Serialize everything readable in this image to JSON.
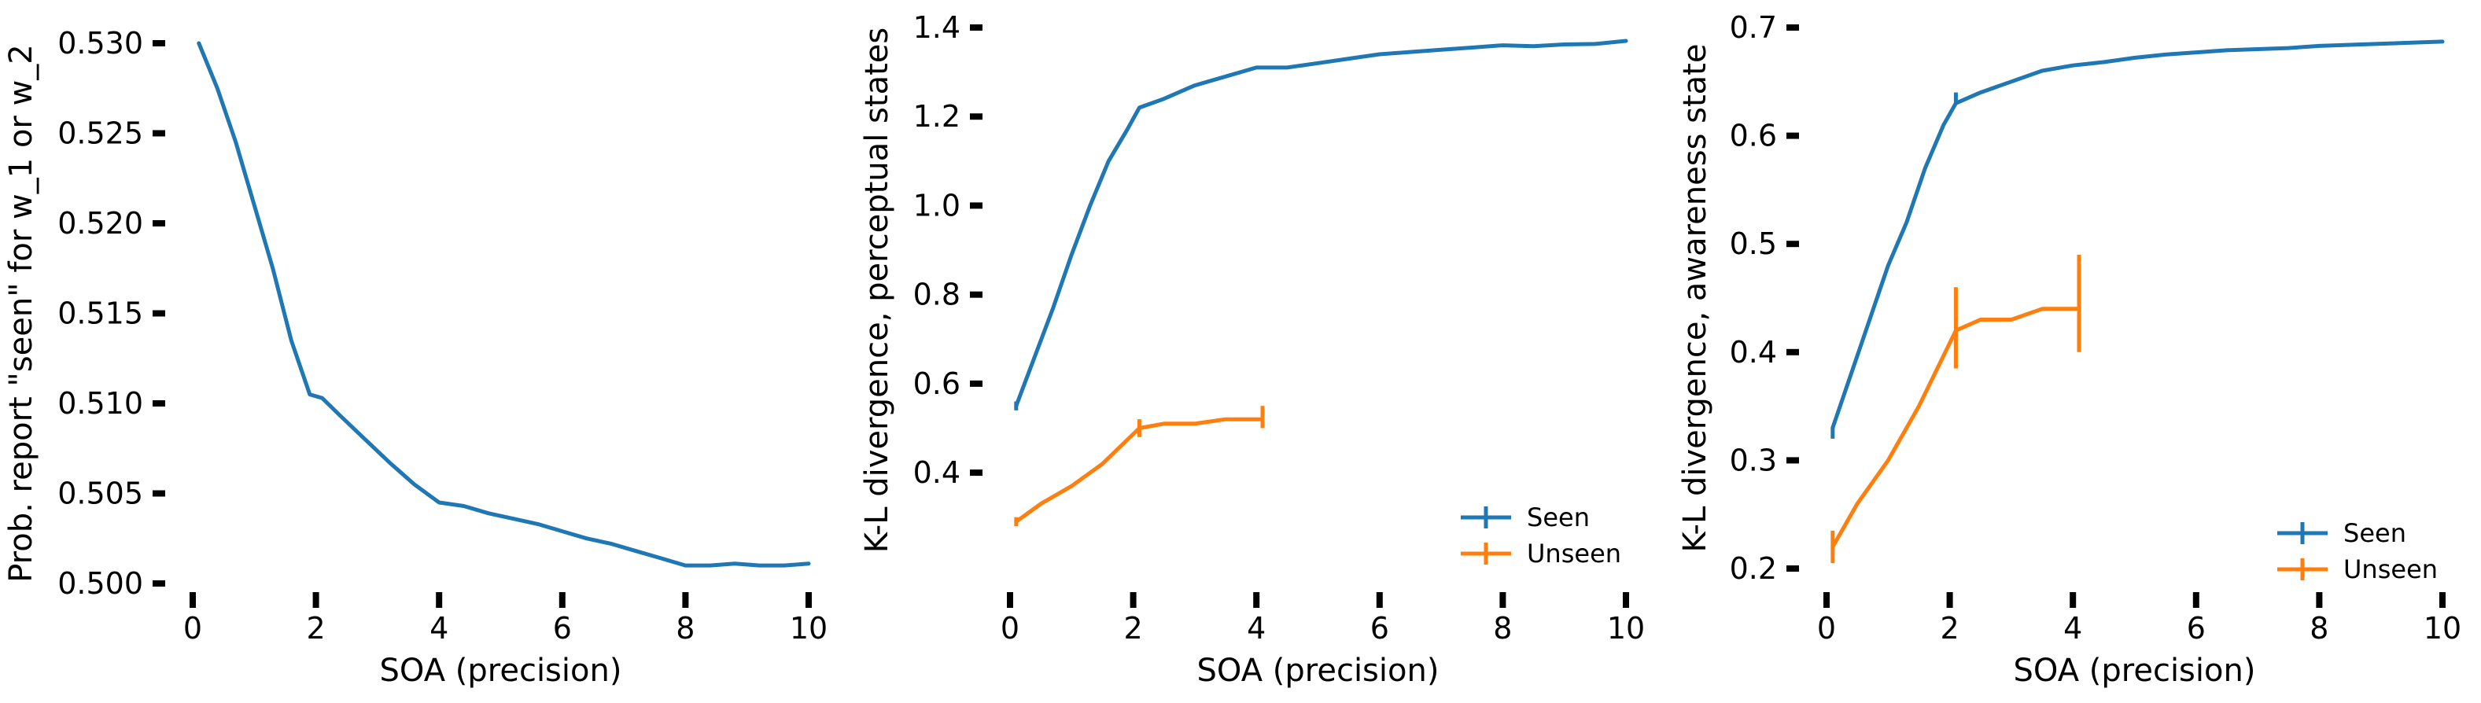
{
  "chart_data": [
    {
      "type": "line",
      "xlabel": "SOA (precision)",
      "ylabel": "Prob. report \"seen\" for w_1 or w_2",
      "xlim": [
        0,
        10
      ],
      "ylim": [
        0.5,
        0.53
      ],
      "xticks": [
        0,
        2,
        4,
        6,
        8,
        10
      ],
      "yticks": [
        0.5,
        0.505,
        0.51,
        0.515,
        0.52,
        0.525,
        0.53
      ],
      "ytick_labels": [
        "0.500",
        "0.505",
        "0.510",
        "0.515",
        "0.520",
        "0.525",
        "0.530"
      ],
      "grid": false,
      "series": [
        {
          "color": "#1f77b4",
          "x": [
            0.1,
            0.4,
            0.7,
            1.0,
            1.3,
            1.6,
            1.9,
            2.1,
            2.4,
            2.8,
            3.2,
            3.6,
            4.0,
            4.4,
            4.8,
            5.2,
            5.6,
            6.0,
            6.4,
            6.8,
            7.2,
            7.6,
            8.0,
            8.4,
            8.8,
            9.2,
            9.6,
            10.0
          ],
          "y": [
            0.53,
            0.5275,
            0.5245,
            0.521,
            0.5175,
            0.5135,
            0.5105,
            0.5103,
            0.5093,
            0.508,
            0.5067,
            0.5055,
            0.5045,
            0.5043,
            0.5039,
            0.5036,
            0.5033,
            0.5029,
            0.5025,
            0.5022,
            0.5018,
            0.5014,
            0.501,
            0.501,
            0.5011,
            0.501,
            0.501,
            0.5011
          ]
        }
      ]
    },
    {
      "type": "line",
      "xlabel": "SOA (precision)",
      "ylabel": "K-L divergence, perceptual states",
      "xlim": [
        0,
        10
      ],
      "ylim": [
        0.22,
        1.4
      ],
      "xticks": [
        0,
        2,
        4,
        6,
        8,
        10
      ],
      "yticks": [
        0.4,
        0.6,
        0.8,
        1.0,
        1.2,
        1.4
      ],
      "ytick_labels": [
        "0.4",
        "0.6",
        "0.8",
        "1.0",
        "1.2",
        "1.4"
      ],
      "grid": false,
      "legend": "bottom-right",
      "series": [
        {
          "name": "Seen",
          "color": "#1f77b4",
          "x": [
            0.1,
            0.4,
            0.7,
            1.0,
            1.3,
            1.6,
            1.9,
            2.1,
            2.5,
            3.0,
            3.5,
            4.0,
            4.5,
            5.0,
            5.5,
            6.0,
            6.5,
            7.0,
            7.5,
            8.0,
            8.5,
            9.0,
            9.5,
            10.0
          ],
          "y": [
            0.55,
            0.66,
            0.77,
            0.89,
            1.0,
            1.1,
            1.17,
            1.22,
            1.24,
            1.27,
            1.29,
            1.31,
            1.31,
            1.32,
            1.33,
            1.34,
            1.345,
            1.35,
            1.355,
            1.36,
            1.358,
            1.362,
            1.363,
            1.37
          ],
          "error_x": [
            0.1
          ],
          "error_y": [
            [
              0.54,
              0.56
            ]
          ]
        },
        {
          "name": "Unseen",
          "color": "#ff7f0e",
          "x": [
            0.1,
            0.5,
            1.0,
            1.5,
            2.1,
            2.5,
            3.0,
            3.5,
            4.1
          ],
          "y": [
            0.29,
            0.33,
            0.37,
            0.42,
            0.5,
            0.51,
            0.51,
            0.52,
            0.52
          ],
          "error_x": [
            0.1,
            2.1,
            4.1
          ],
          "error_y": [
            [
              0.28,
              0.3
            ],
            [
              0.48,
              0.52
            ],
            [
              0.5,
              0.55
            ]
          ]
        }
      ]
    },
    {
      "type": "line",
      "xlabel": "SOA (precision)",
      "ylabel": "K-L divergence, awareness state",
      "xlim": [
        0,
        10
      ],
      "ylim": [
        0.2,
        0.7
      ],
      "xticks": [
        0,
        2,
        4,
        6,
        8,
        10
      ],
      "yticks": [
        0.2,
        0.3,
        0.4,
        0.5,
        0.6,
        0.7
      ],
      "ytick_labels": [
        "0.2",
        "0.3",
        "0.4",
        "0.5",
        "0.6",
        "0.7"
      ],
      "grid": false,
      "legend": "bottom-right",
      "series": [
        {
          "name": "Seen",
          "color": "#1f77b4",
          "x": [
            0.1,
            0.4,
            0.7,
            1.0,
            1.3,
            1.6,
            1.9,
            2.1,
            2.5,
            3.0,
            3.5,
            4.0,
            4.5,
            5.0,
            5.5,
            6.0,
            6.5,
            7.0,
            7.5,
            8.0,
            8.5,
            9.0,
            9.5,
            10.0
          ],
          "y": [
            0.33,
            0.38,
            0.43,
            0.48,
            0.52,
            0.57,
            0.61,
            0.63,
            0.64,
            0.65,
            0.66,
            0.665,
            0.668,
            0.672,
            0.675,
            0.677,
            0.679,
            0.68,
            0.681,
            0.683,
            0.684,
            0.685,
            0.686,
            0.687
          ],
          "error_x": [
            0.1,
            2.1
          ],
          "error_y": [
            [
              0.32,
              0.33
            ],
            [
              0.63,
              0.64
            ]
          ]
        },
        {
          "name": "Unseen",
          "color": "#ff7f0e",
          "x": [
            0.1,
            0.5,
            1.0,
            1.5,
            2.1,
            2.5,
            3.0,
            3.5,
            4.1
          ],
          "y": [
            0.22,
            0.26,
            0.3,
            0.35,
            0.42,
            0.43,
            0.43,
            0.44,
            0.44
          ],
          "error_x": [
            0.1,
            2.1,
            4.1
          ],
          "error_y": [
            [
              0.205,
              0.235
            ],
            [
              0.385,
              0.46
            ],
            [
              0.4,
              0.49
            ]
          ]
        }
      ]
    }
  ]
}
